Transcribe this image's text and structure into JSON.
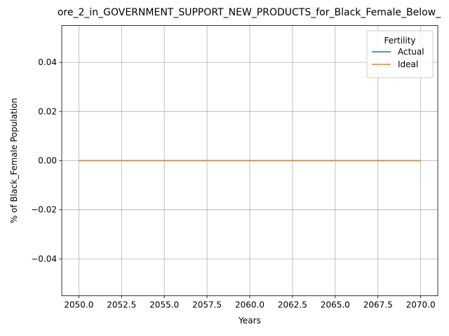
{
  "chart_data": {
    "type": "line",
    "title": "ore_2_in_GOVERNMENT_SUPPORT_NEW_PRODUCTS_for_Black_Female_Below_",
    "xlabel": "Years",
    "ylabel": "% of Black_Female Population",
    "xlim": [
      2049.0,
      2071.0
    ],
    "ylim": [
      -0.055,
      0.055
    ],
    "x_ticks": [
      2050.0,
      2052.5,
      2055.0,
      2057.5,
      2060.0,
      2062.5,
      2065.0,
      2067.5,
      2070.0
    ],
    "x_tick_labels": [
      "2050.0",
      "2052.5",
      "2055.0",
      "2057.5",
      "2060.0",
      "2062.5",
      "2065.0",
      "2067.5",
      "2070.0"
    ],
    "y_ticks": [
      -0.04,
      -0.02,
      0.0,
      0.02,
      0.04
    ],
    "y_tick_labels": [
      "−0.04",
      "−0.02",
      "0.00",
      "0.02",
      "0.04"
    ],
    "grid": true,
    "legend": {
      "title": "Fertility",
      "placement": "top-right"
    },
    "x": [
      2050,
      2051,
      2052,
      2053,
      2054,
      2055,
      2056,
      2057,
      2058,
      2059,
      2060,
      2061,
      2062,
      2063,
      2064,
      2065,
      2066,
      2067,
      2068,
      2069,
      2070
    ],
    "series": [
      {
        "name": "Actual",
        "color": "#1f77b4",
        "values": [
          0,
          0,
          0,
          0,
          0,
          0,
          0,
          0,
          0,
          0,
          0,
          0,
          0,
          0,
          0,
          0,
          0,
          0,
          0,
          0,
          0
        ]
      },
      {
        "name": "Ideal",
        "color": "#ff7f0e",
        "values": [
          0,
          0,
          0,
          0,
          0,
          0,
          0,
          0,
          0,
          0,
          0,
          0,
          0,
          0,
          0,
          0,
          0,
          0,
          0,
          0,
          0
        ]
      }
    ]
  }
}
